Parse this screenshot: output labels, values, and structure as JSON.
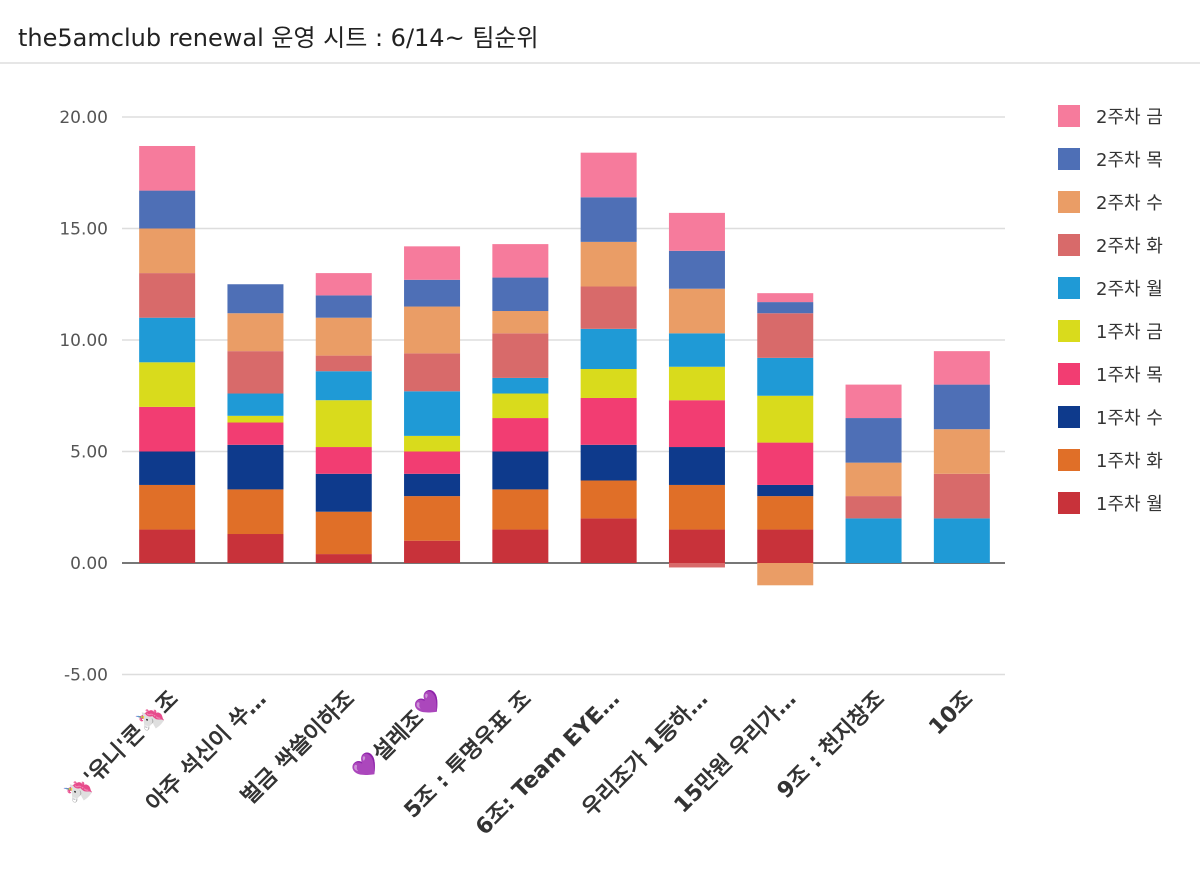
{
  "chart_data": {
    "type": "bar",
    "stacked": true,
    "title": "the5amclub renewal 운영 시트 : 6/14~ 팀순위",
    "xlabel": "",
    "ylabel": "",
    "ylim": [
      -5,
      20
    ],
    "yticks": [
      "20.00",
      "15.00",
      "10.00",
      "5.00",
      "0.00",
      "-5.00"
    ],
    "grid": true,
    "legend_position": "right",
    "categories": [
      "🦄'유니'콘🦄조",
      "아주 석신이 쑤…",
      "벌금 싹쓸이하조",
      "💜설레조💜",
      "5조 : 투명우표 조",
      "6조: Team EYE…",
      "우리조가 1등하…",
      "15만원 우리가…",
      "9조 : 천지창조",
      "10조"
    ],
    "series": [
      {
        "name": "1주차 월",
        "color": "#c8323a",
        "values": [
          1.5,
          1.3,
          0.4,
          1.0,
          1.5,
          2.0,
          1.5,
          1.5,
          0,
          0
        ]
      },
      {
        "name": "1주차 화",
        "color": "#e06f28",
        "values": [
          2.0,
          2.0,
          1.9,
          2.0,
          1.8,
          1.7,
          2.0,
          1.5,
          0,
          0
        ]
      },
      {
        "name": "1주차 수",
        "color": "#0e3a8c",
        "values": [
          1.5,
          2.0,
          1.7,
          1.0,
          1.7,
          1.6,
          1.7,
          0.5,
          0,
          0
        ]
      },
      {
        "name": "1주차 목",
        "color": "#f23d72",
        "values": [
          2.0,
          1.0,
          1.2,
          1.0,
          1.5,
          2.1,
          2.1,
          1.9,
          0,
          0
        ]
      },
      {
        "name": "1주차 금",
        "color": "#d9db1c",
        "values": [
          2.0,
          0.3,
          2.1,
          0.7,
          1.1,
          1.3,
          1.5,
          2.1,
          0,
          0
        ]
      },
      {
        "name": "2주차 월",
        "color": "#1f9ad6",
        "values": [
          2.0,
          1.0,
          1.3,
          2.0,
          0.7,
          1.8,
          1.5,
          1.7,
          2.0,
          2.0
        ]
      },
      {
        "name": "2주차 화",
        "color": "#d86a6a",
        "values": [
          2.0,
          1.9,
          0.7,
          1.7,
          2.0,
          1.9,
          0,
          2.0,
          1.0,
          2.0
        ]
      },
      {
        "name": "2주차 수",
        "color": "#ea9d66",
        "values": [
          2.0,
          1.7,
          1.7,
          2.1,
          1.0,
          2.0,
          2.0,
          -1.0,
          1.5,
          2.0
        ]
      },
      {
        "name": "2주차 목",
        "color": "#4e6fb6",
        "values": [
          1.7,
          1.3,
          1.0,
          1.2,
          1.5,
          2.0,
          1.7,
          0.5,
          2.0,
          2.0
        ]
      },
      {
        "name": "2주차 금",
        "color": "#f67b9c",
        "values": [
          2.0,
          0,
          1.0,
          1.5,
          1.5,
          2.0,
          1.7,
          0.4,
          1.5,
          1.5
        ]
      }
    ],
    "negative_overrides": [
      {
        "category_index": 6,
        "series_index": 6,
        "value": -0.2
      }
    ]
  }
}
